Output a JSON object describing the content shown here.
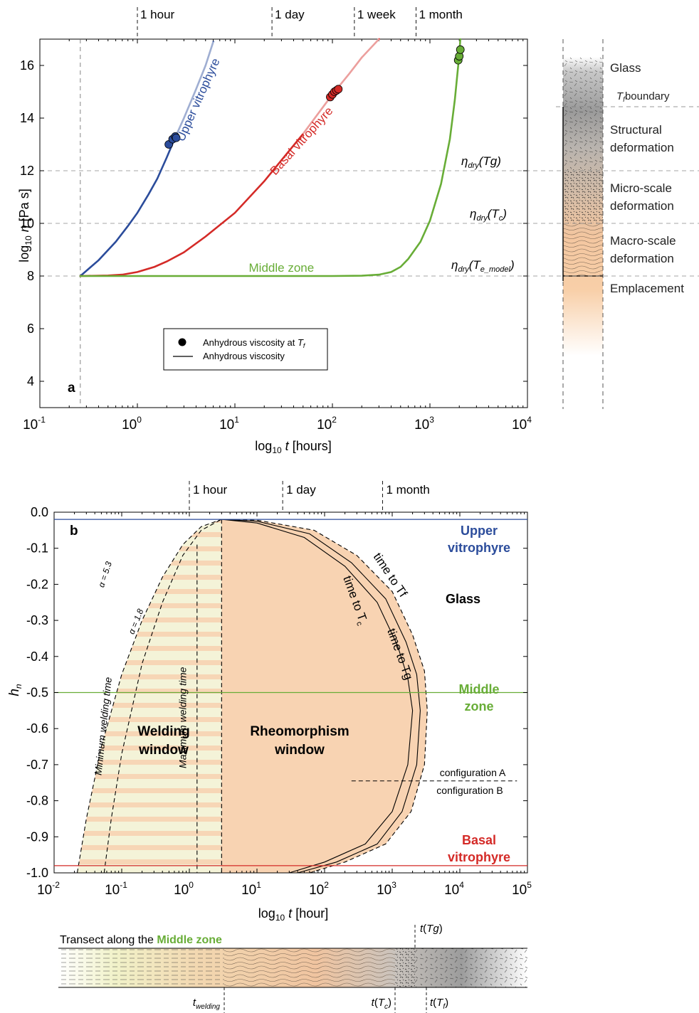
{
  "chart_data": [
    {
      "panel": "a",
      "type": "line",
      "xlabel": "log10 t [hours]",
      "ylabel": "log10 η [Pa s]",
      "xscale": "log",
      "xlim": [
        0.1,
        10000
      ],
      "ylim": [
        3,
        17
      ],
      "x_ticks": [
        0.1,
        1,
        10,
        100,
        1000,
        10000
      ],
      "x_tick_labels": [
        {
          "base": "10",
          "exp": "-1"
        },
        {
          "base": "10",
          "exp": "0"
        },
        {
          "base": "10",
          "exp": "1"
        },
        {
          "base": "10",
          "exp": "2"
        },
        {
          "base": "10",
          "exp": "3"
        },
        {
          "base": "10",
          "exp": "4"
        }
      ],
      "y_ticks": [
        4,
        6,
        8,
        10,
        12,
        14,
        16
      ],
      "top_time_marks": [
        {
          "label": "1 hour",
          "t": 1
        },
        {
          "label": "1 day",
          "t": 24
        },
        {
          "label": "1 week",
          "t": 168
        },
        {
          "label": "1 month",
          "t": 720
        }
      ],
      "vertical_dashed_t": 0.26,
      "reference_lines": [
        {
          "y": 12,
          "label": "ηdry(Tg)"
        },
        {
          "y": 10,
          "label": "ηdry(Tc)"
        },
        {
          "y": 8,
          "label": "ηdry(Te_model)"
        }
      ],
      "series": [
        {
          "name": "Upper vitrophyre",
          "color": "#2b4c9b",
          "x": [
            0.26,
            0.4,
            0.6,
            0.8,
            1.0,
            1.3,
            1.6,
            2.0,
            2.4,
            3.0,
            4.0,
            5.0,
            6.0
          ],
          "y": [
            8.0,
            8.6,
            9.3,
            9.9,
            10.4,
            11.1,
            11.7,
            12.5,
            13.2,
            14.0,
            15.1,
            16.0,
            16.9
          ],
          "points_x": [
            2.1,
            2.3,
            2.45,
            2.5
          ],
          "points_y": [
            13.0,
            13.2,
            13.3,
            13.25
          ]
        },
        {
          "name": "Basal vitrophyre",
          "color": "#d42a27",
          "x": [
            0.26,
            0.5,
            0.7,
            1.0,
            1.5,
            2.0,
            3.0,
            5.0,
            10,
            20,
            30,
            50,
            100,
            150,
            200,
            300
          ],
          "y": [
            8.0,
            8.02,
            8.05,
            8.15,
            8.35,
            8.55,
            8.9,
            9.5,
            10.4,
            11.6,
            12.4,
            13.4,
            14.9,
            15.7,
            16.3,
            17.0
          ],
          "points_x": [
            95,
            100,
            105,
            110,
            115
          ],
          "points_y": [
            14.8,
            14.9,
            15.0,
            15.05,
            15.1
          ]
        },
        {
          "name": "Middle zone",
          "color": "#68ad37",
          "x": [
            0.26,
            1,
            10,
            100,
            200,
            300,
            400,
            500,
            600,
            800,
            1000,
            1300,
            1600,
            1800,
            2000,
            2050
          ],
          "y": [
            8.0,
            8.0,
            8.0,
            8.0,
            8.01,
            8.05,
            8.15,
            8.35,
            8.65,
            9.3,
            10.1,
            11.5,
            13.2,
            14.7,
            16.4,
            17.0
          ],
          "points_x": [
            1950,
            2000,
            2050
          ],
          "points_y": [
            16.2,
            16.35,
            16.6
          ]
        }
      ],
      "panel_label": "a",
      "legend": {
        "items": [
          {
            "marker": "point",
            "label": "Anhydrous viscosity at ",
            "sym": "T",
            "sub": "f"
          },
          {
            "marker": "line",
            "label": "Anhydrous viscosity"
          }
        ],
        "placement": "bottom-center"
      },
      "labels": {
        "upper": "Upper vitrophyre",
        "basal": "Basal vitrophyre",
        "middle": "Middle zone",
        "eta_tg": {
          "pre": "η",
          "sub": "dry",
          "post": "(Tg)"
        },
        "eta_tc": {
          "pre": "η",
          "sub": "dry",
          "mid": "(T",
          "sub2": "c",
          "post": ")"
        },
        "eta_te": {
          "pre": "η",
          "sub": "dry",
          "mid": "(T",
          "sub2": "e_model",
          "post": ")"
        }
      },
      "column_legend": [
        {
          "label": "Glass"
        },
        {
          "label": "boundary",
          "sym": "T",
          "sub": "f"
        },
        {
          "label": "Structural"
        },
        {
          "label": "deformation"
        },
        {
          "label": "Micro-scale"
        },
        {
          "label": "deformation"
        },
        {
          "label": "Macro-scale"
        },
        {
          "label": "deformation"
        },
        {
          "label": "Emplacement"
        }
      ]
    },
    {
      "panel": "b",
      "type": "area",
      "xlabel": "log10 t [hour]",
      "ylabel": "hn",
      "xscale": "log",
      "xlim": [
        0.01,
        100000
      ],
      "ylim": [
        -1.0,
        0.0
      ],
      "x_ticks": [
        0.01,
        0.1,
        1,
        10,
        100,
        1000,
        10000,
        100000
      ],
      "x_tick_labels": [
        {
          "base": "10",
          "exp": "-2"
        },
        {
          "base": "10",
          "exp": "-1"
        },
        {
          "base": "10",
          "exp": "0"
        },
        {
          "base": "10",
          "exp": "1"
        },
        {
          "base": "10",
          "exp": "2"
        },
        {
          "base": "10",
          "exp": "3"
        },
        {
          "base": "10",
          "exp": "4"
        },
        {
          "base": "10",
          "exp": "5"
        }
      ],
      "y_ticks": [
        0.0,
        -0.1,
        -0.2,
        -0.3,
        -0.4,
        -0.5,
        -0.6,
        -0.7,
        -0.8,
        -0.9,
        -1.0
      ],
      "y_tick_labels": [
        "0.0",
        "-0.1",
        "-0.2",
        "-0.3",
        "-0.4",
        "-0.5",
        "-0.6",
        "-0.7",
        "-0.8",
        "-0.9",
        "-1.0"
      ],
      "top_time_marks": [
        {
          "label": "1 hour",
          "t": 1
        },
        {
          "label": "1 day",
          "t": 24
        },
        {
          "label": "1 month",
          "t": 720
        }
      ],
      "horizontal_lines": [
        {
          "y": -0.02,
          "color": "#2b4c9b",
          "label": [
            "Upper",
            "vitrophyre"
          ]
        },
        {
          "y": -0.5,
          "color": "#68ad37",
          "label": [
            "Middle",
            "zone"
          ]
        },
        {
          "y": -0.98,
          "color": "#d42a27",
          "label": [
            "Basal",
            "vitrophyre"
          ]
        }
      ],
      "curves": {
        "min_weld_alpha_5_3": {
          "x": [
            0.022,
            0.03,
            0.05,
            0.1,
            0.2,
            0.4,
            0.8,
            1.5,
            3.0
          ],
          "y": [
            -1.0,
            -0.85,
            -0.65,
            -0.45,
            -0.3,
            -0.18,
            -0.09,
            -0.04,
            -0.02
          ]
        },
        "min_weld_alpha_1_8": {
          "x": [
            0.055,
            0.07,
            0.1,
            0.2,
            0.4,
            0.8,
            1.5,
            3.0
          ],
          "y": [
            -1.0,
            -0.85,
            -0.67,
            -0.42,
            -0.25,
            -0.12,
            -0.05,
            -0.02
          ]
        },
        "max_welding_t": 1.3,
        "rheo_start_t": 3.0,
        "time_to_Tc": {
          "x": [
            3.0,
            10,
            50,
            200,
            600,
            1200,
            1700,
            2000,
            1700,
            1000,
            400,
            100,
            30
          ],
          "y": [
            -0.02,
            -0.03,
            -0.07,
            -0.15,
            -0.25,
            -0.37,
            -0.46,
            -0.55,
            -0.7,
            -0.83,
            -0.92,
            -0.97,
            -1.0
          ]
        },
        "time_to_Tg": {
          "x": [
            3.0,
            10,
            60,
            250,
            800,
            1600,
            2300,
            2600,
            2300,
            1400,
            600,
            150,
            40
          ],
          "y": [
            -0.02,
            -0.025,
            -0.06,
            -0.14,
            -0.24,
            -0.36,
            -0.45,
            -0.55,
            -0.7,
            -0.83,
            -0.92,
            -0.97,
            -1.0
          ]
        },
        "time_to_Tf": {
          "x": [
            3.0,
            10,
            70,
            300,
            1000,
            2000,
            3000,
            3300,
            3000,
            1900,
            800,
            200,
            60
          ],
          "y": [
            -0.02,
            -0.022,
            -0.05,
            -0.12,
            -0.22,
            -0.34,
            -0.44,
            -0.55,
            -0.7,
            -0.83,
            -0.92,
            -0.97,
            -1.0
          ]
        }
      },
      "config_line": {
        "y": -0.745,
        "x_from": 250,
        "x_to": 70000,
        "label_top": "configuration A",
        "label_bottom": "configuration B"
      },
      "labels": {
        "panel": "b",
        "alpha_5_3": "α = 5.3",
        "alpha_1_8": "α = 1.8",
        "min_weld": "Minimum welding time",
        "max_weld": "Maximum welding time",
        "welding_window": [
          "Welding",
          "window"
        ],
        "rheo_window": [
          "Rheomorphism",
          "window"
        ],
        "glass": "Glass",
        "time_to_tf": "time to Tf",
        "time_to_tg": "time to Tg",
        "time_to_tc": "time to T",
        "time_to_tc_sub": "c"
      },
      "transect": {
        "title_pre": "Transect along the ",
        "title_hl": "Middle zone",
        "highlight_color": "#68ad37",
        "t_welding": {
          "pre": "t",
          "sub": "welding"
        },
        "t_tc": {
          "pre": "t(T",
          "sub": "c",
          "post": ")"
        },
        "t_tf": {
          "pre": "t(T",
          "sub": "f",
          "post": ")"
        },
        "t_tg": {
          "pre": "t(",
          "mid": "Tg",
          "post": ")"
        }
      }
    }
  ]
}
